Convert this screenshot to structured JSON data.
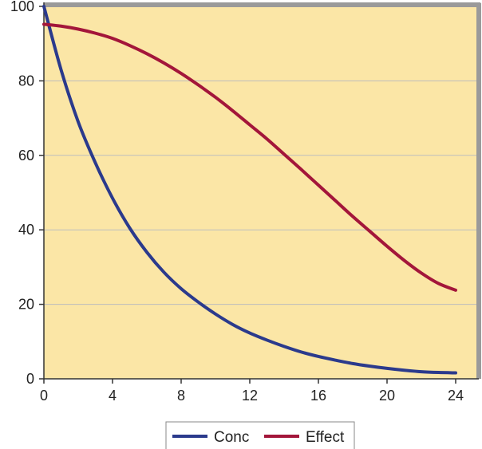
{
  "chart_data": {
    "type": "line",
    "title": "",
    "xlabel": "",
    "ylabel": "",
    "xlim": [
      0,
      24
    ],
    "ylim": [
      0,
      100
    ],
    "x_ticks": [
      "0",
      "4",
      "8",
      "12",
      "16",
      "20",
      "24"
    ],
    "y_ticks": [
      "0",
      "20",
      "40",
      "60",
      "80",
      "100"
    ],
    "grid": "horizontal",
    "legend_position": "bottom",
    "colors": {
      "plot_background": "#FBE6A6",
      "frame": "#9A9A9A",
      "gridline": "#BDBDBD"
    },
    "series": [
      {
        "name": "Conc",
        "color": "#2B3A8C",
        "x": [
          0,
          1,
          2,
          3,
          4,
          5,
          6,
          7,
          8,
          9,
          10,
          11,
          12,
          13,
          14,
          15,
          16,
          17,
          18,
          19,
          20,
          21,
          22,
          23,
          24
        ],
        "y": [
          100,
          83,
          69,
          58,
          48.5,
          40.5,
          34,
          28.6,
          24.2,
          20.6,
          17.4,
          14.6,
          12.3,
          10.4,
          8.7,
          7.2,
          6.0,
          5.0,
          4.1,
          3.4,
          2.8,
          2.3,
          1.9,
          1.7,
          1.6
        ]
      },
      {
        "name": "Effect",
        "color": "#A3163A",
        "x": [
          0,
          1,
          2,
          3,
          4,
          5,
          6,
          7,
          8,
          9,
          10,
          11,
          12,
          13,
          14,
          15,
          16,
          17,
          18,
          19,
          20,
          21,
          22,
          23,
          24
        ],
        "y": [
          95.2,
          94.7,
          93.9,
          92.8,
          91.4,
          89.5,
          87.3,
          84.8,
          82.0,
          78.9,
          75.6,
          72.0,
          68.2,
          64.4,
          60.3,
          56.2,
          52.0,
          47.8,
          43.6,
          39.6,
          35.6,
          31.8,
          28.4,
          25.6,
          23.8
        ]
      }
    ]
  }
}
